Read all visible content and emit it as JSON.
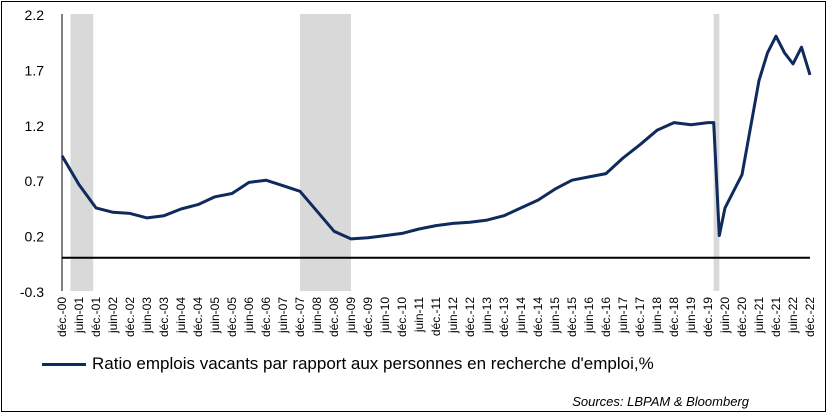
{
  "chart_data": {
    "type": "line",
    "title": "",
    "xlabel": "",
    "ylabel": "",
    "ylim": [
      -0.3,
      2.2
    ],
    "yticks": [
      "2.2",
      "1.7",
      "1.2",
      "0.7",
      "0.2",
      "-0.3"
    ],
    "ytick_values": [
      2.2,
      1.7,
      1.2,
      0.7,
      0.2,
      -0.3
    ],
    "x_start": "déc.-00",
    "x_end": "déc.-22",
    "xtick_labels": [
      "déc.-00",
      "juin-01",
      "déc.-01",
      "juin-02",
      "déc.-02",
      "juin-03",
      "déc.-03",
      "juin-04",
      "déc.-04",
      "juin-05",
      "déc.-05",
      "juin-06",
      "déc.-06",
      "juin-07",
      "déc.-07",
      "juin-08",
      "déc.-08",
      "juin-09",
      "déc.-09",
      "juin-10",
      "déc.-10",
      "juin-11",
      "déc.-11",
      "juin-12",
      "déc.-12",
      "juin-13",
      "déc.-13",
      "juin-14",
      "déc.-14",
      "juin-15",
      "déc.-15",
      "juin-16",
      "déc.-16",
      "juin-17",
      "déc.-17",
      "juin-18",
      "déc.-18",
      "juin-19",
      "déc.-19",
      "juin-20",
      "déc.-20",
      "juin-21",
      "déc.-21",
      "juin-22",
      "déc.-22"
    ],
    "recessions": [
      {
        "start": "mars-01",
        "end": "nov.-01"
      },
      {
        "start": "déc.-07",
        "end": "juin-09"
      },
      {
        "start": "févr.-20",
        "end": "avr.-20"
      }
    ],
    "series": [
      {
        "name": "Ratio emplois vacants par rapport aux personnes en recherche d'emploi,%",
        "color": "#0f2a5c",
        "x_labels": [
          "déc.-00",
          "juin-01",
          "déc.-01",
          "juin-02",
          "déc.-02",
          "juin-03",
          "déc.-03",
          "juin-04",
          "déc.-04",
          "juin-05",
          "déc.-05",
          "juin-06",
          "déc.-06",
          "juin-07",
          "déc.-07",
          "juin-08",
          "déc.-08",
          "juin-09",
          "déc.-09",
          "juin-10",
          "déc.-10",
          "juin-11",
          "déc.-11",
          "juin-12",
          "déc.-12",
          "juin-13",
          "déc.-13",
          "juin-14",
          "déc.-14",
          "juin-15",
          "déc.-15",
          "juin-16",
          "déc.-16",
          "juin-17",
          "déc.-17",
          "juin-18",
          "déc.-18",
          "juin-19",
          "déc.-19",
          "févr.-20",
          "avr.-20",
          "juin-20",
          "déc.-20",
          "juin-21",
          "sept.-21",
          "déc.-21",
          "mars-22",
          "juin-22",
          "sept.-22",
          "déc.-22"
        ],
        "values": [
          0.92,
          0.66,
          0.45,
          0.41,
          0.4,
          0.36,
          0.38,
          0.44,
          0.48,
          0.55,
          0.58,
          0.68,
          0.7,
          0.65,
          0.6,
          0.42,
          0.24,
          0.17,
          0.18,
          0.2,
          0.22,
          0.26,
          0.29,
          0.31,
          0.32,
          0.34,
          0.38,
          0.45,
          0.52,
          0.62,
          0.7,
          0.73,
          0.76,
          0.9,
          1.02,
          1.15,
          1.22,
          1.2,
          1.22,
          1.22,
          0.2,
          0.45,
          0.75,
          1.6,
          1.85,
          2.0,
          1.85,
          1.75,
          1.9,
          1.65
        ]
      }
    ],
    "legend_position": "bottom-left"
  },
  "legend_label": "Ratio emplois vacants par rapport aux personnes en recherche d'emploi,%",
  "source": "Sources: LBPAM & Bloomberg"
}
